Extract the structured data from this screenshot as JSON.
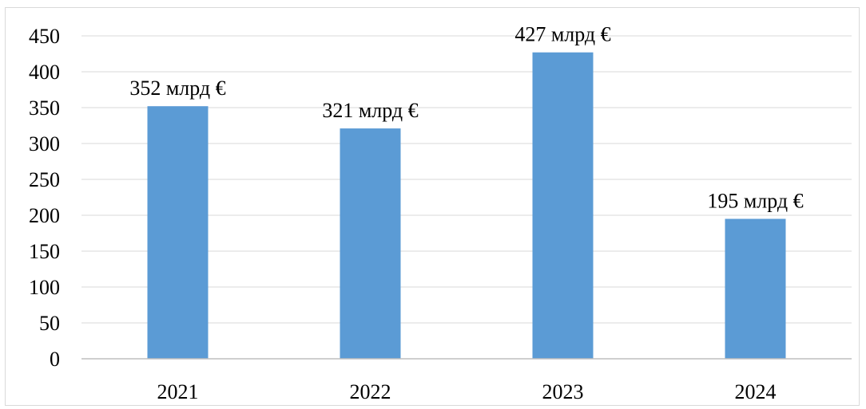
{
  "chart_data": {
    "type": "bar",
    "title": "",
    "xlabel": "",
    "ylabel": "",
    "categories": [
      "2021",
      "2022",
      "2023",
      "2024"
    ],
    "values": [
      352,
      321,
      427,
      195
    ],
    "data_labels": [
      "352 млрд  €",
      "321 млрд €",
      "427 млрд €",
      "195 млрд €"
    ],
    "ylim": [
      0,
      450
    ],
    "y_ticks": [
      0,
      50,
      100,
      150,
      200,
      250,
      300,
      350,
      400,
      450
    ],
    "grid": true,
    "legend": "none",
    "colors": {
      "bar": "#5b9bd5",
      "grid": "#d9d9d9",
      "axis": "#bfbfbf",
      "text": "#000000"
    }
  }
}
